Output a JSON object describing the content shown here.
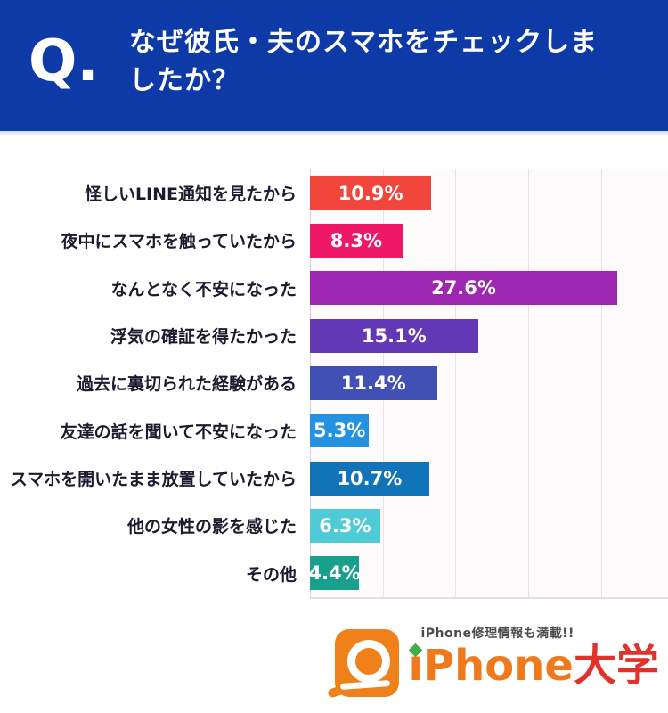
{
  "header": {
    "q_label": "Q.",
    "title_line1": "なぜ彼氏・夫のスマホをチェックしま",
    "title_line2": "したか？",
    "bg_color": "#0d3aa6"
  },
  "chart_data": {
    "type": "bar",
    "orientation": "horizontal",
    "title": "なぜ彼氏・夫のスマホをチェックしましたか？",
    "unit": "%",
    "categories": [
      "怪しいLINE通知を見たから",
      "夜中にスマホを触っていたから",
      "なんとなく不安になった",
      "浮気の確証を得たかった",
      "過去に裏切られた経験がある",
      "友達の話を聞いて不安になった",
      "スマホを開いたまま放置していたから",
      "他の女性の影を感じた",
      "その他"
    ],
    "values": [
      10.9,
      8.3,
      27.6,
      15.1,
      11.4,
      5.3,
      10.7,
      6.3,
      4.4
    ],
    "value_labels": [
      "10.9%",
      "8.3%",
      "27.6%",
      "15.1%",
      "11.4%",
      "5.3%",
      "10.7%",
      "6.3%",
      "4.4%"
    ],
    "bar_colors": [
      "#f2463c",
      "#ed1966",
      "#9d27b0",
      "#6238b6",
      "#4150b5",
      "#2492e2",
      "#1274b8",
      "#4ecbd7",
      "#17a08c"
    ],
    "xlim": [
      0,
      32
    ],
    "grid": true,
    "gridline_color": "#ecdfea",
    "legend": false,
    "value_label_color": "#ffffff",
    "category_label_color": "#1b1a2e"
  },
  "footer": {
    "tagline": "iPhone修理情報も満載!!",
    "brand_iphone": "iPhone",
    "brand_daigaku": "大学",
    "brand_iphone_color": "#f0791c",
    "brand_daigaku_color": "#e23129",
    "icon_color": "#f08019",
    "diamond_color": "#3fae49"
  }
}
